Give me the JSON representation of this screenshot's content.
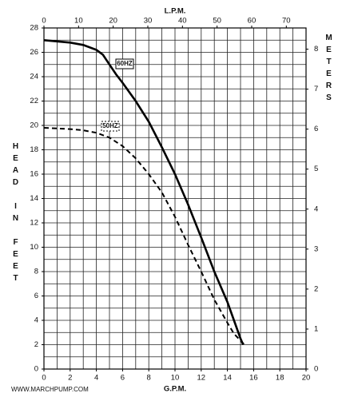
{
  "chart_data": {
    "type": "line",
    "x_label": "G.P.M.",
    "x2_label": "L.P.M.",
    "y_label": "HEAD IN FEET",
    "y2_label": "METERS",
    "footer": "WWW.MARCHPUMP.COM",
    "xlim": [
      0,
      20
    ],
    "xticks": [
      0,
      2,
      4,
      6,
      8,
      10,
      12,
      14,
      16,
      18,
      20
    ],
    "x2lim": [
      0,
      75.7
    ],
    "x2ticks": [
      0,
      10,
      20,
      30,
      40,
      50,
      60,
      70
    ],
    "ylim": [
      0,
      28
    ],
    "yticks": [
      0,
      2,
      4,
      6,
      8,
      10,
      12,
      14,
      16,
      18,
      20,
      22,
      24,
      26,
      28
    ],
    "y2lim": [
      0,
      8.53
    ],
    "y2ticks": [
      0,
      1,
      2,
      3,
      4,
      5,
      6,
      7,
      8
    ],
    "grid": true,
    "series": [
      {
        "name": "60HZ",
        "color": "#000000",
        "dashed": false,
        "x": [
          0,
          2,
          3,
          4,
          4.5,
          5,
          5.5,
          6,
          7,
          8,
          9,
          10,
          11,
          12,
          13,
          14,
          14.5,
          15,
          15.2
        ],
        "values": [
          27,
          26.8,
          26.6,
          26.2,
          25.8,
          25,
          24.2,
          23.5,
          22,
          20.3,
          18.2,
          16,
          13.5,
          10.8,
          8,
          5.5,
          4,
          2.5,
          2
        ]
      },
      {
        "name": "50HZ",
        "color": "#000000",
        "dashed": true,
        "x": [
          0,
          2,
          3,
          4,
          5,
          6,
          7,
          8,
          9,
          10,
          11,
          12,
          13,
          14,
          14.5,
          15.3
        ],
        "values": [
          19.8,
          19.7,
          19.6,
          19.4,
          19,
          18.3,
          17.3,
          16,
          14.5,
          12.5,
          10.2,
          8,
          5.7,
          3.8,
          2.9,
          2
        ]
      }
    ]
  }
}
